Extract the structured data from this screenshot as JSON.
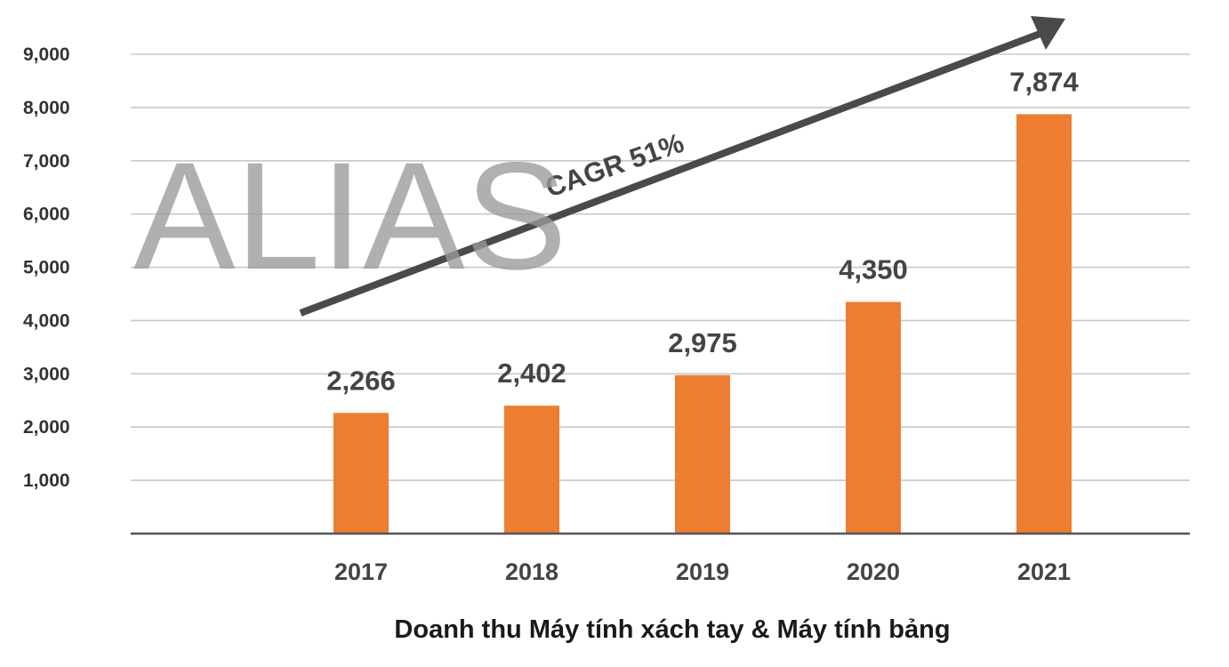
{
  "colors": {
    "bar": "#ED7D31",
    "grid": "#c8c8c8",
    "axis": "#555555",
    "arrow": "#4a4a4a",
    "watermark": "#9a9a9a"
  },
  "chart_data": {
    "type": "bar",
    "categories": [
      "2017",
      "2018",
      "2019",
      "2020",
      "2021"
    ],
    "values": [
      2266,
      2402,
      2975,
      4350,
      7874
    ],
    "data_labels": [
      "2,266",
      "2,402",
      "2,975",
      "4,350",
      "7,874"
    ],
    "xlabel": "Doanh thu Máy tính xách tay & Máy tính bảng",
    "ylabel": "",
    "ylim": [
      0,
      9000
    ],
    "yticks": [
      1000,
      2000,
      3000,
      4000,
      5000,
      6000,
      7000,
      8000,
      9000
    ],
    "ytick_labels": [
      "1,000",
      "2,000",
      "3,000",
      "4,000",
      "5,000",
      "6,000",
      "7,000",
      "8,000",
      "9,000"
    ],
    "grid": true,
    "legend": "none",
    "annotation": "CAGR 51%",
    "watermark": "ALIAS"
  }
}
